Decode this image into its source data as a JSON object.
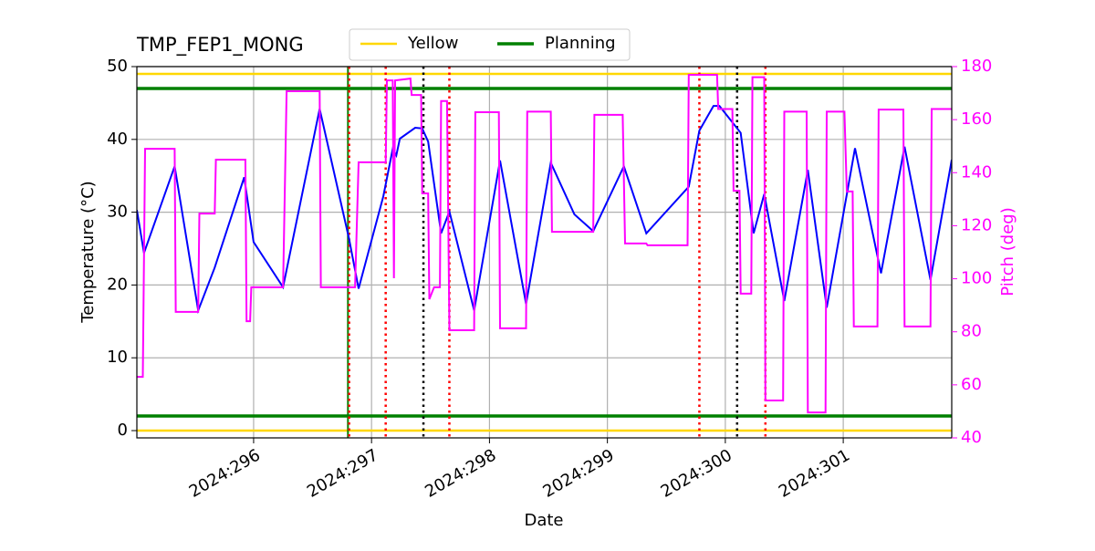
{
  "chart_data": {
    "type": "line",
    "title": "TMP_FEP1_MONG",
    "xlabel": "Date",
    "ylabel": "Temperature (°C)",
    "y2label": "Pitch (deg)",
    "xlim": [
      295.01,
      301.92
    ],
    "xticks": [
      {
        "value": 296,
        "label": "2024:296"
      },
      {
        "value": 297,
        "label": "2024:297"
      },
      {
        "value": 298,
        "label": "2024:298"
      },
      {
        "value": 299,
        "label": "2024:299"
      },
      {
        "value": 300,
        "label": "2024:300"
      },
      {
        "value": 301,
        "label": "2024:301"
      }
    ],
    "ylim": [
      -1,
      50
    ],
    "yticks": [
      0,
      10,
      20,
      30,
      40,
      50
    ],
    "y2lim": [
      40,
      180
    ],
    "y2ticks": [
      40,
      60,
      80,
      100,
      120,
      140,
      160,
      180
    ],
    "y2color": "#ff00ff",
    "grid": true,
    "legend": "top",
    "series": [
      {
        "color": "#0000ff",
        "x": [
          295.01,
          295.07,
          295.33,
          295.53,
          295.67,
          295.92,
          296.0,
          296.25,
          296.56,
          296.81,
          296.89,
          297.1,
          297.18,
          297.21,
          297.24,
          297.37,
          297.43,
          297.48,
          297.59,
          297.66,
          297.87,
          298.09,
          298.31,
          298.52,
          298.72,
          298.88,
          299.14,
          299.33,
          299.69,
          299.78,
          299.9,
          299.95,
          300.13,
          300.24,
          300.33,
          300.5,
          300.7,
          300.86,
          301.1,
          301.32,
          301.52,
          301.74,
          301.92
        ],
        "values": [
          30.3,
          24.4,
          36.3,
          16.5,
          22.4,
          34.8,
          25.9,
          19.7,
          44.2,
          26.3,
          19.5,
          32.2,
          38.7,
          37.8,
          40.1,
          41.6,
          41.5,
          39.7,
          27.1,
          30.1,
          16.5,
          37.1,
          17.4,
          36.8,
          29.7,
          27.4,
          36.3,
          27.1,
          33.5,
          41.2,
          44.6,
          44.6,
          40.9,
          27.1,
          32.5,
          17.8,
          35.8,
          16.9,
          38.8,
          21.6,
          39.0,
          20.7,
          37.2
        ]
      },
      {
        "color": "#ff00ff",
        "axis": "y2",
        "x": [
          295.01,
          295.06,
          295.08,
          295.33,
          295.34,
          295.53,
          295.54,
          295.67,
          295.68,
          295.93,
          295.94,
          295.97,
          295.98,
          296.25,
          296.28,
          296.56,
          296.57,
          296.86,
          296.89,
          297.12,
          297.13,
          297.18,
          297.19,
          297.2,
          297.33,
          297.34,
          297.42,
          297.43,
          297.48,
          297.49,
          297.53,
          297.58,
          297.59,
          297.64,
          297.66,
          297.87,
          297.88,
          298.08,
          298.09,
          298.31,
          298.32,
          298.52,
          298.53,
          298.88,
          298.89,
          299.13,
          299.15,
          299.33,
          299.34,
          299.68,
          299.69,
          299.93,
          299.94,
          300.06,
          300.07,
          300.12,
          300.13,
          300.22,
          300.23,
          300.33,
          300.34,
          300.49,
          300.5,
          300.69,
          300.7,
          300.85,
          300.86,
          301.01,
          301.03,
          301.08,
          301.09,
          301.29,
          301.3,
          301.51,
          301.52,
          301.74,
          301.75,
          301.92
        ],
        "values": [
          63,
          63,
          149,
          149,
          87.5,
          87.5,
          124.6,
          124.6,
          144.9,
          144.9,
          84,
          84,
          96.8,
          96.8,
          170.7,
          170.7,
          96.8,
          96.8,
          143.9,
          143.9,
          174.8,
          174.8,
          100.2,
          174.8,
          175.5,
          169.3,
          169.3,
          132.2,
          132.2,
          92.3,
          96.8,
          96.8,
          167,
          167,
          80.6,
          80.6,
          162.8,
          162.8,
          81.3,
          81.3,
          163,
          163,
          117.7,
          117.7,
          161.8,
          161.8,
          113.3,
          113.3,
          112.6,
          112.6,
          176.9,
          176.9,
          164,
          164,
          133.2,
          133.2,
          94.4,
          94.4,
          176,
          176,
          54.1,
          54.1,
          163,
          163,
          49.6,
          49.6,
          163,
          163,
          132.9,
          132.9,
          82,
          82,
          163.8,
          163.8,
          82,
          82,
          164,
          164
        ]
      }
    ],
    "limit_lines": [
      {
        "name": "Yellow",
        "color": "#ffd700",
        "values": [
          0,
          49
        ]
      },
      {
        "name": "Planning",
        "color": "#008000",
        "values": [
          2,
          47
        ]
      }
    ],
    "vlines": [
      {
        "x": 296.8,
        "color": "#008000",
        "style": "solid"
      },
      {
        "x": 296.81,
        "color": "#ff0000",
        "style": "dotted"
      },
      {
        "x": 297.12,
        "color": "#ff0000",
        "style": "dotted"
      },
      {
        "x": 297.44,
        "color": "#000000",
        "style": "dotted"
      },
      {
        "x": 297.66,
        "color": "#ff0000",
        "style": "dotted"
      },
      {
        "x": 299.78,
        "color": "#ff0000",
        "style": "dotted"
      },
      {
        "x": 300.1,
        "color": "#000000",
        "style": "dotted"
      },
      {
        "x": 300.34,
        "color": "#ff0000",
        "style": "dotted"
      }
    ]
  }
}
